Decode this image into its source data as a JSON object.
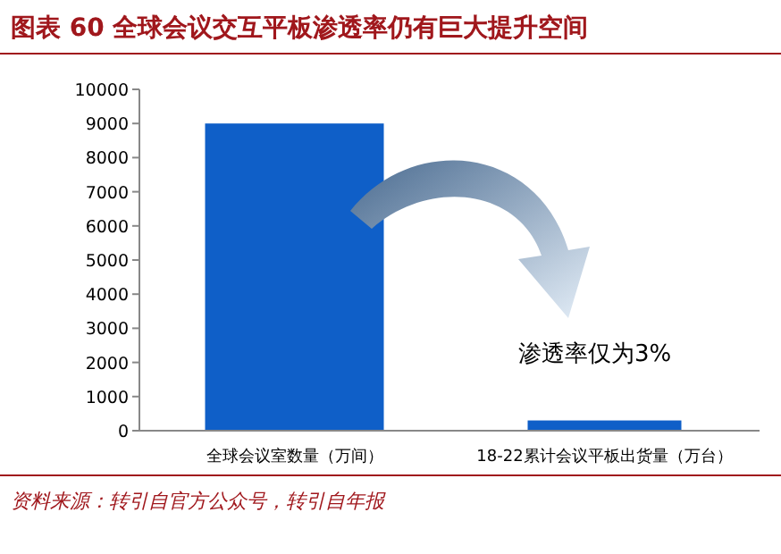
{
  "chart_data": {
    "type": "bar",
    "title": "图表 60  全球会议交互平板渗透率仍有巨大提升空间",
    "categories": [
      "全球会议室数量（万间）",
      "18-22累计会议平板出货量（万台）"
    ],
    "values": [
      9000,
      300
    ],
    "color": "#0f5fc8",
    "ylim": [
      0,
      10000
    ],
    "yticks": [
      0,
      1000,
      2000,
      3000,
      4000,
      5000,
      6000,
      7000,
      8000,
      9000,
      10000
    ],
    "annotations": [
      "渗透率仅为3%",
      "资料来源：转引自官方公众号，转引自年报"
    ]
  }
}
